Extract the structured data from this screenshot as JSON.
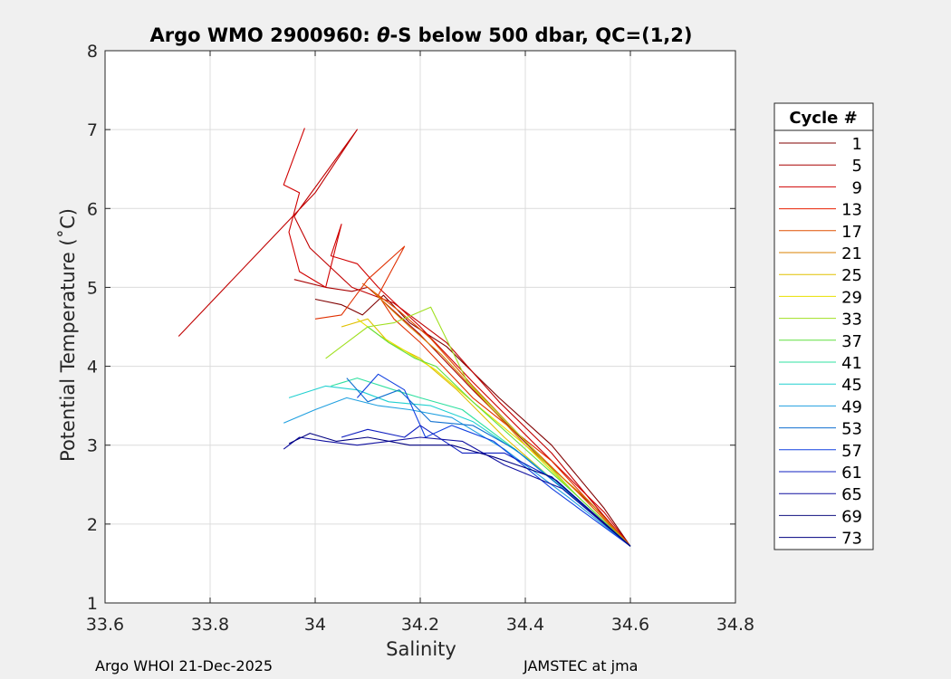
{
  "chart_data": {
    "type": "line",
    "title_prefix": "Argo WMO 2900960: ",
    "title_symbol": "θ",
    "title_suffix": "-S below 500 dbar,  QC=(1,2)",
    "xlabel": "Salinity",
    "ylabel": "Potential Temperature (˚C)",
    "xlim": [
      33.6,
      34.8
    ],
    "ylim": [
      1,
      8
    ],
    "xticks": [
      "33.6",
      "33.8",
      "34",
      "34.2",
      "34.4",
      "34.6",
      "34.8"
    ],
    "yticks": [
      "1",
      "2",
      "3",
      "4",
      "5",
      "6",
      "7",
      "8"
    ],
    "grid": true,
    "legend": {
      "title": "Cycle #",
      "placement": "right-outside",
      "entries": [
        "1",
        "5",
        "9",
        "13",
        "17",
        "21",
        "25",
        "29",
        "33",
        "37",
        "41",
        "45",
        "49",
        "53",
        "57",
        "61",
        "65",
        "69",
        "73"
      ],
      "colors": [
        "#800000",
        "#a80000",
        "#d00000",
        "#e82000",
        "#e05000",
        "#d88000",
        "#e0c000",
        "#e8e000",
        "#a0e020",
        "#60e040",
        "#30e0a0",
        "#20d0d0",
        "#20a0e0",
        "#1070d0",
        "#1040e0",
        "#1020c0",
        "#1010a0",
        "#101080",
        "#000080"
      ]
    },
    "series": [
      {
        "color": "#800000",
        "x": [
          34.0,
          34.05,
          34.09,
          34.13,
          34.18,
          34.25,
          34.35,
          34.45,
          34.55,
          34.6
        ],
        "y": [
          4.85,
          4.78,
          4.65,
          4.9,
          4.55,
          4.25,
          3.6,
          3.0,
          2.2,
          1.72
        ]
      },
      {
        "color": "#a80000",
        "x": [
          33.96,
          34.02,
          34.07,
          34.1,
          34.15,
          34.2,
          34.3,
          34.42,
          34.55,
          34.6
        ],
        "y": [
          5.1,
          5.0,
          4.95,
          5.0,
          4.7,
          4.4,
          3.7,
          2.9,
          2.1,
          1.72
        ]
      },
      {
        "color": "#c00000",
        "x": [
          33.74,
          33.9,
          34.0,
          34.08,
          33.96,
          33.99,
          34.07,
          34.15,
          34.25,
          34.35,
          34.45,
          34.55,
          34.6
        ],
        "y": [
          4.38,
          5.5,
          6.2,
          7.0,
          5.9,
          5.5,
          5.0,
          4.8,
          4.3,
          3.55,
          2.9,
          2.1,
          1.72
        ]
      },
      {
        "color": "#d00000",
        "x": [
          33.98,
          33.94,
          33.97,
          33.95,
          33.97,
          34.02,
          34.05,
          34.03,
          34.08,
          34.12,
          34.2,
          34.3,
          34.42,
          34.55,
          34.6
        ],
        "y": [
          7.02,
          6.3,
          6.2,
          5.7,
          5.2,
          5.0,
          5.8,
          5.4,
          5.3,
          5.0,
          4.5,
          3.8,
          3.0,
          2.15,
          1.72
        ]
      },
      {
        "color": "#e03000",
        "x": [
          34.0,
          34.05,
          34.1,
          34.17,
          34.12,
          34.15,
          34.2,
          34.3,
          34.45,
          34.6
        ],
        "y": [
          4.6,
          4.65,
          5.1,
          5.52,
          4.9,
          4.6,
          4.3,
          3.6,
          2.8,
          1.72
        ]
      },
      {
        "color": "#e05000",
        "x": [
          34.09,
          34.12,
          34.16,
          34.22,
          34.3,
          34.4,
          34.5,
          34.6
        ],
        "y": [
          5.05,
          4.9,
          4.7,
          4.35,
          3.75,
          3.05,
          2.4,
          1.72
        ]
      },
      {
        "color": "#d88000",
        "x": [
          34.11,
          34.14,
          34.18,
          34.24,
          34.31,
          34.4,
          34.52,
          34.6
        ],
        "y": [
          4.95,
          4.75,
          4.5,
          4.15,
          3.65,
          3.0,
          2.3,
          1.72
        ]
      },
      {
        "color": "#e0c000",
        "x": [
          34.05,
          34.1,
          34.14,
          34.2,
          34.27,
          34.36,
          34.48,
          34.6
        ],
        "y": [
          4.5,
          4.6,
          4.3,
          4.1,
          3.7,
          3.1,
          2.4,
          1.72
        ]
      },
      {
        "color": "#e8e000",
        "x": [
          34.08,
          34.12,
          34.17,
          34.23,
          34.3,
          34.4,
          34.5,
          34.6
        ],
        "y": [
          4.6,
          4.4,
          4.2,
          3.95,
          3.55,
          3.0,
          2.35,
          1.72
        ]
      },
      {
        "color": "#a0e020",
        "x": [
          34.02,
          34.06,
          34.1,
          34.15,
          34.22,
          34.29,
          34.4,
          34.5,
          34.6
        ],
        "y": [
          4.1,
          4.3,
          4.5,
          4.55,
          4.75,
          3.8,
          3.05,
          2.35,
          1.72
        ]
      },
      {
        "color": "#60e040",
        "x": [
          34.1,
          34.14,
          34.19,
          34.23,
          34.3,
          34.4,
          34.5,
          34.6
        ],
        "y": [
          4.5,
          4.3,
          4.1,
          4.0,
          3.55,
          2.95,
          2.35,
          1.72
        ]
      },
      {
        "color": "#30e0a0",
        "x": [
          34.03,
          34.08,
          34.15,
          34.2,
          34.28,
          34.38,
          34.5,
          34.6
        ],
        "y": [
          3.75,
          3.85,
          3.7,
          3.6,
          3.45,
          2.95,
          2.3,
          1.72
        ]
      },
      {
        "color": "#20d0d0",
        "x": [
          33.95,
          34.02,
          34.08,
          34.14,
          34.22,
          34.3,
          34.4,
          34.5,
          34.6
        ],
        "y": [
          3.6,
          3.75,
          3.7,
          3.55,
          3.5,
          3.3,
          2.85,
          2.3,
          1.72
        ]
      },
      {
        "color": "#20a0e0",
        "x": [
          33.94,
          34.0,
          34.06,
          34.12,
          34.18,
          34.26,
          34.36,
          34.48,
          34.6
        ],
        "y": [
          3.28,
          3.45,
          3.6,
          3.5,
          3.45,
          3.35,
          2.95,
          2.35,
          1.72
        ]
      },
      {
        "color": "#1070d0",
        "x": [
          34.06,
          34.1,
          34.16,
          34.22,
          34.3,
          34.38,
          34.48,
          34.6
        ],
        "y": [
          3.85,
          3.55,
          3.7,
          3.3,
          3.25,
          2.95,
          2.4,
          1.72
        ]
      },
      {
        "color": "#1040e0",
        "x": [
          34.08,
          34.12,
          34.17,
          34.21,
          34.26,
          34.34,
          34.45,
          34.6
        ],
        "y": [
          3.6,
          3.9,
          3.7,
          3.1,
          3.25,
          3.05,
          2.45,
          1.72
        ]
      },
      {
        "color": "#1020c0",
        "x": [
          34.05,
          34.1,
          34.17,
          34.2,
          34.28,
          34.36,
          34.46,
          34.6
        ],
        "y": [
          3.1,
          3.2,
          3.1,
          3.25,
          2.9,
          2.9,
          2.55,
          1.72
        ]
      },
      {
        "color": "#1010a0",
        "x": [
          33.94,
          33.97,
          34.02,
          34.08,
          34.14,
          34.2,
          34.28,
          34.36,
          34.47,
          34.6
        ],
        "y": [
          2.95,
          3.1,
          3.05,
          3.0,
          3.05,
          3.1,
          3.05,
          2.75,
          2.45,
          1.72
        ]
      },
      {
        "color": "#000080",
        "x": [
          33.95,
          33.99,
          34.04,
          34.1,
          34.18,
          34.26,
          34.34,
          34.45,
          34.6
        ],
        "y": [
          3.02,
          3.15,
          3.05,
          3.1,
          3.0,
          3.0,
          2.85,
          2.6,
          1.72
        ]
      }
    ]
  },
  "footer": {
    "left": "Argo WHOI 21-Dec-2025",
    "right": "JAMSTEC at jma"
  }
}
